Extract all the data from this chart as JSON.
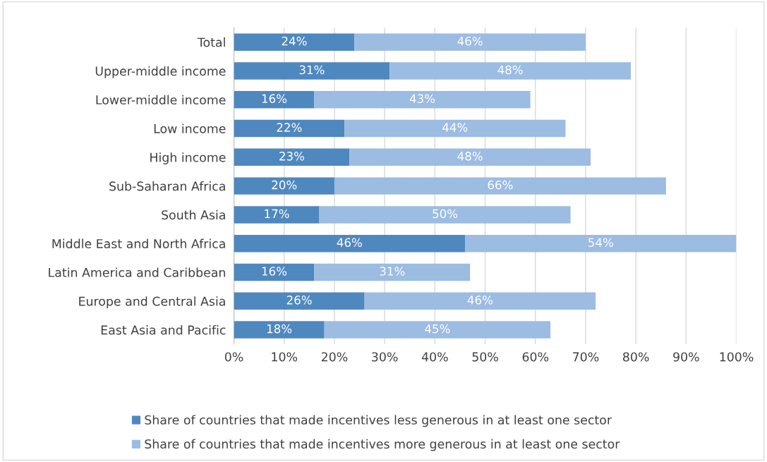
{
  "chart_data": {
    "type": "bar",
    "orientation": "horizontal",
    "stacked": true,
    "categories": [
      "Total",
      "Upper-middle income",
      "Lower-middle income",
      "Low income",
      "High income",
      "Sub-Saharan Africa",
      "South Asia",
      "Middle East and North Africa",
      "Latin America and Caribbean",
      "Europe and Central Asia",
      "East Asia and Pacific"
    ],
    "series": [
      {
        "name": "Share of countries that made incentives less generous in at least one sector",
        "color": "#4f88bf",
        "values": [
          24,
          31,
          16,
          22,
          23,
          20,
          17,
          46,
          16,
          26,
          18
        ],
        "value_labels": [
          "24%",
          "31%",
          "16%",
          "22%",
          "23%",
          "20%",
          "17%",
          "46%",
          "16%",
          "26%",
          "18%"
        ]
      },
      {
        "name": "Share of countries that made incentives more generous in at least one sector",
        "color": "#9cbce2",
        "values": [
          46,
          48,
          43,
          44,
          48,
          66,
          50,
          54,
          31,
          46,
          45
        ],
        "value_labels": [
          "46%",
          "48%",
          "43%",
          "44%",
          "48%",
          "66%",
          "50%",
          "54%",
          "31%",
          "46%",
          "45%"
        ]
      }
    ],
    "xlim": [
      0,
      100
    ],
    "xticks": [
      {
        "value": 0,
        "label": "0%"
      },
      {
        "value": 10,
        "label": "10%"
      },
      {
        "value": 20,
        "label": "20%"
      },
      {
        "value": 30,
        "label": "30%"
      },
      {
        "value": 40,
        "label": "40%"
      },
      {
        "value": 50,
        "label": "50%"
      },
      {
        "value": 60,
        "label": "60%"
      },
      {
        "value": 70,
        "label": "70%"
      },
      {
        "value": 80,
        "label": "80%"
      },
      {
        "value": 90,
        "label": "90%"
      },
      {
        "value": 100,
        "label": "100%"
      }
    ],
    "grid": "x",
    "legend": "bottom"
  }
}
